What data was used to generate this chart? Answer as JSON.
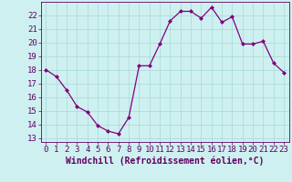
{
  "x": [
    0,
    1,
    2,
    3,
    4,
    5,
    6,
    7,
    8,
    9,
    10,
    11,
    12,
    13,
    14,
    15,
    16,
    17,
    18,
    19,
    20,
    21,
    22,
    23
  ],
  "y": [
    18.0,
    17.5,
    16.5,
    15.3,
    14.9,
    13.9,
    13.5,
    13.3,
    14.5,
    18.3,
    18.3,
    19.9,
    21.6,
    22.3,
    22.3,
    21.8,
    22.6,
    21.5,
    21.9,
    19.9,
    19.9,
    20.1,
    18.5,
    17.8
  ],
  "line_color": "#800080",
  "marker": "D",
  "marker_size": 2,
  "bg_color": "#cff0f0",
  "grid_color": "#aadddd",
  "xlabel": "Windchill (Refroidissement éolien,°C)",
  "xlabel_fontsize": 7,
  "xlim": [
    -0.5,
    23.5
  ],
  "ylim": [
    12.7,
    23.0
  ],
  "yticks": [
    13,
    14,
    15,
    16,
    17,
    18,
    19,
    20,
    21,
    22
  ],
  "xticks": [
    0,
    1,
    2,
    3,
    4,
    5,
    6,
    7,
    8,
    9,
    10,
    11,
    12,
    13,
    14,
    15,
    16,
    17,
    18,
    19,
    20,
    21,
    22,
    23
  ],
  "tick_fontsize": 6.5,
  "spine_color": "#600060",
  "label_color": "#600060"
}
